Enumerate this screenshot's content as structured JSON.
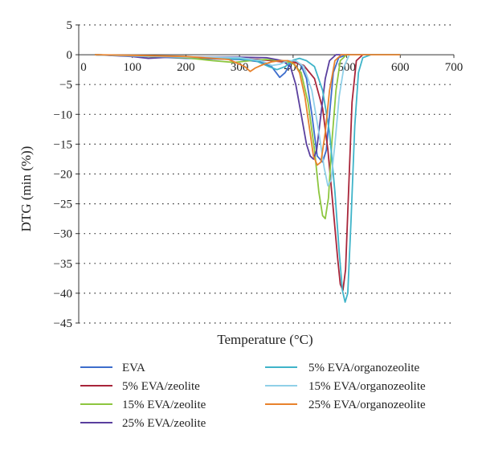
{
  "chart_data": {
    "type": "line",
    "title": "",
    "xlabel": "Temperature (°C)",
    "ylabel": "DTG (min (%))",
    "xlim": [
      0,
      700
    ],
    "ylim": [
      -45,
      5
    ],
    "x_ticks": [
      0,
      100,
      200,
      300,
      400,
      500,
      600,
      700
    ],
    "y_ticks": [
      5,
      0,
      -5,
      -10,
      -15,
      -20,
      -25,
      -30,
      -35,
      -40,
      -45
    ],
    "grid": "horizontal-dotted",
    "legend_position": "bottom",
    "series": [
      {
        "name": "EVA",
        "color": "#3d6dcc",
        "points": [
          [
            30,
            0
          ],
          [
            100,
            -0.2
          ],
          [
            200,
            -0.6
          ],
          [
            300,
            -0.8
          ],
          [
            340,
            -1.2
          ],
          [
            360,
            -2.0
          ],
          [
            375,
            -3.8
          ],
          [
            385,
            -3.0
          ],
          [
            395,
            -1.5
          ],
          [
            405,
            -1.2
          ],
          [
            415,
            -1.8
          ],
          [
            425,
            -4
          ],
          [
            435,
            -10
          ],
          [
            445,
            -17
          ],
          [
            455,
            -18
          ],
          [
            462,
            -16
          ],
          [
            468,
            -10
          ],
          [
            475,
            -3
          ],
          [
            485,
            -0.5
          ],
          [
            500,
            0
          ],
          [
            600,
            0
          ]
        ]
      },
      {
        "name": "5% EVA/zeolite",
        "color": "#a8253a",
        "points": [
          [
            30,
            0
          ],
          [
            100,
            -0.2
          ],
          [
            200,
            -0.5
          ],
          [
            300,
            -0.6
          ],
          [
            350,
            -0.9
          ],
          [
            380,
            -1.2
          ],
          [
            400,
            -1.2
          ],
          [
            420,
            -1.8
          ],
          [
            440,
            -4
          ],
          [
            455,
            -9
          ],
          [
            465,
            -16
          ],
          [
            475,
            -26
          ],
          [
            483,
            -34
          ],
          [
            488,
            -38.5
          ],
          [
            493,
            -39.5
          ],
          [
            498,
            -36
          ],
          [
            503,
            -24
          ],
          [
            510,
            -8
          ],
          [
            518,
            -1
          ],
          [
            530,
            0
          ],
          [
            600,
            0
          ]
        ]
      },
      {
        "name": "15% EVA/zeolite",
        "color": "#8dc63f",
        "points": [
          [
            30,
            0
          ],
          [
            100,
            -0.2
          ],
          [
            200,
            -0.5
          ],
          [
            250,
            -1.0
          ],
          [
            290,
            -1.3
          ],
          [
            320,
            -1.0
          ],
          [
            350,
            -0.8
          ],
          [
            380,
            -1.0
          ],
          [
            400,
            -1.5
          ],
          [
            415,
            -3
          ],
          [
            428,
            -8
          ],
          [
            440,
            -16
          ],
          [
            448,
            -23
          ],
          [
            455,
            -27
          ],
          [
            460,
            -27.5
          ],
          [
            466,
            -24
          ],
          [
            472,
            -15
          ],
          [
            480,
            -6
          ],
          [
            488,
            -1
          ],
          [
            500,
            0
          ],
          [
            600,
            0
          ]
        ]
      },
      {
        "name": "25% EVA/zeolite",
        "color": "#5a3f9e",
        "points": [
          [
            30,
            0
          ],
          [
            100,
            -0.3
          ],
          [
            130,
            -0.6
          ],
          [
            170,
            -0.4
          ],
          [
            230,
            -0.4
          ],
          [
            300,
            -0.4
          ],
          [
            350,
            -0.5
          ],
          [
            380,
            -1.0
          ],
          [
            395,
            -2
          ],
          [
            405,
            -5
          ],
          [
            415,
            -10
          ],
          [
            425,
            -15
          ],
          [
            432,
            -17
          ],
          [
            438,
            -17.5
          ],
          [
            444,
            -16
          ],
          [
            452,
            -10
          ],
          [
            460,
            -4
          ],
          [
            468,
            -1
          ],
          [
            480,
            0
          ],
          [
            600,
            0
          ]
        ]
      },
      {
        "name": "5% EVA/organozeolite",
        "color": "#3fb4c9",
        "points": [
          [
            30,
            0
          ],
          [
            100,
            -0.2
          ],
          [
            200,
            -0.4
          ],
          [
            300,
            -0.7
          ],
          [
            330,
            -1.0
          ],
          [
            355,
            -2.0
          ],
          [
            370,
            -2.5
          ],
          [
            385,
            -2.0
          ],
          [
            400,
            -0.9
          ],
          [
            412,
            -0.6
          ],
          [
            425,
            -1.0
          ],
          [
            440,
            -2
          ],
          [
            455,
            -6
          ],
          [
            468,
            -13
          ],
          [
            478,
            -23
          ],
          [
            486,
            -33
          ],
          [
            492,
            -39.5
          ],
          [
            497,
            -41.5
          ],
          [
            502,
            -40
          ],
          [
            508,
            -28
          ],
          [
            515,
            -12
          ],
          [
            522,
            -3
          ],
          [
            530,
            -0.5
          ],
          [
            545,
            0
          ],
          [
            600,
            0
          ]
        ]
      },
      {
        "name": "15% EVA/organozeolite",
        "color": "#90d0e8",
        "points": [
          [
            30,
            0
          ],
          [
            100,
            -0.2
          ],
          [
            200,
            -0.4
          ],
          [
            300,
            -0.5
          ],
          [
            340,
            -1.0
          ],
          [
            360,
            -1.8
          ],
          [
            375,
            -1.6
          ],
          [
            390,
            -1.0
          ],
          [
            405,
            -1.0
          ],
          [
            420,
            -2
          ],
          [
            435,
            -6
          ],
          [
            448,
            -13
          ],
          [
            458,
            -19
          ],
          [
            465,
            -22
          ],
          [
            471,
            -21
          ],
          [
            478,
            -15
          ],
          [
            486,
            -7
          ],
          [
            495,
            -2
          ],
          [
            505,
            0
          ],
          [
            600,
            0
          ]
        ]
      },
      {
        "name": "25% EVA/organozeolite",
        "color": "#e8822c",
        "points": [
          [
            30,
            0
          ],
          [
            100,
            -0.1
          ],
          [
            200,
            -0.3
          ],
          [
            280,
            -0.8
          ],
          [
            310,
            -2.0
          ],
          [
            320,
            -2.8
          ],
          [
            330,
            -2.2
          ],
          [
            345,
            -1.6
          ],
          [
            360,
            -1.2
          ],
          [
            375,
            -1.0
          ],
          [
            390,
            -1.0
          ],
          [
            402,
            -1.5
          ],
          [
            412,
            -3
          ],
          [
            422,
            -7
          ],
          [
            430,
            -12
          ],
          [
            438,
            -17
          ],
          [
            445,
            -18.5
          ],
          [
            452,
            -18
          ],
          [
            460,
            -13
          ],
          [
            468,
            -6
          ],
          [
            478,
            -1
          ],
          [
            490,
            0
          ],
          [
            600,
            0
          ]
        ]
      }
    ]
  }
}
